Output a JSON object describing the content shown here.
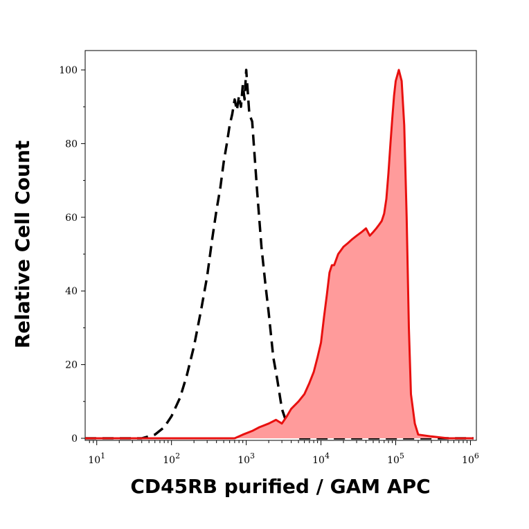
{
  "chart_data": {
    "type": "area",
    "xlabel": "CD45RB purified / GAM APC",
    "ylabel": "Relative Cell Count",
    "x_scale": "log",
    "xlim": [
      7,
      1200000
    ],
    "ylim": [
      0,
      105
    ],
    "x_ticks": [
      {
        "value": 10,
        "base": "10",
        "exp": "1"
      },
      {
        "value": 100,
        "base": "10",
        "exp": "2"
      },
      {
        "value": 1000,
        "base": "10",
        "exp": "3"
      },
      {
        "value": 10000,
        "base": "10",
        "exp": "4"
      },
      {
        "value": 100000,
        "base": "10",
        "exp": "5"
      },
      {
        "value": 1000000,
        "base": "10",
        "exp": "6"
      }
    ],
    "y_ticks": [
      0,
      20,
      40,
      60,
      80,
      100
    ],
    "grid": false,
    "series": [
      {
        "style": "dashed-line",
        "color": "#000000",
        "x": [
          7,
          40,
          60,
          80,
          100,
          130,
          160,
          200,
          250,
          300,
          350,
          400,
          450,
          500,
          550,
          600,
          650,
          700,
          750,
          800,
          850,
          900,
          950,
          1000,
          1100,
          1200,
          1400,
          1600,
          1800,
          2000,
          2300,
          2600,
          3000,
          3500,
          4000,
          4500,
          5000,
          10000,
          100000,
          1100000
        ],
        "values": [
          0,
          0,
          1,
          3,
          6,
          11,
          17,
          25,
          35,
          44,
          54,
          62,
          68,
          75,
          80,
          85,
          88,
          92,
          89,
          93,
          90,
          96,
          92,
          100,
          88,
          86,
          67,
          52,
          42,
          34,
          22,
          16,
          8,
          4,
          1.5,
          0.5,
          0,
          0,
          0,
          0
        ]
      },
      {
        "style": "filled-area",
        "color": "#e8100f",
        "fill": "#ff9b9b",
        "x": [
          7,
          700,
          900,
          1200,
          1500,
          2000,
          2500,
          3000,
          3500,
          4000,
          5000,
          6000,
          7000,
          8000,
          9000,
          10000,
          11000,
          12000,
          13000,
          14000,
          15000,
          17000,
          20000,
          23000,
          26000,
          30000,
          35000,
          40000,
          45000,
          50000,
          55000,
          60000,
          65000,
          70000,
          75000,
          80000,
          85000,
          90000,
          95000,
          100000,
          110000,
          120000,
          130000,
          140000,
          150000,
          160000,
          180000,
          200000,
          300000,
          500000,
          1000000,
          1100000
        ],
        "values": [
          0,
          0,
          1,
          2,
          3,
          4,
          5,
          4,
          6,
          8,
          10,
          12,
          15,
          18,
          22,
          26,
          33,
          39,
          45,
          47,
          47,
          50,
          52,
          53,
          54,
          55,
          56,
          57,
          55,
          56,
          57,
          58,
          59,
          61,
          65,
          72,
          80,
          87,
          93,
          97,
          100,
          97,
          85,
          60,
          30,
          12,
          4,
          1,
          0.5,
          0,
          0,
          0
        ]
      }
    ]
  }
}
